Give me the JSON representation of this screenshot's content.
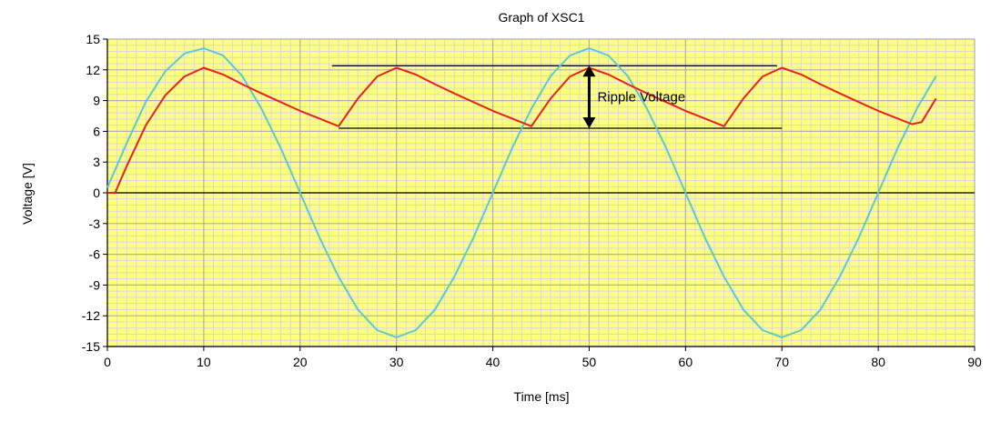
{
  "chart_data": {
    "type": "line",
    "title": "Graph of XSC1",
    "xlabel": "Time [ms]",
    "ylabel": "Voltage [V]",
    "xlim": [
      0,
      90
    ],
    "ylim": [
      -15,
      15
    ],
    "x_ticks": [
      0,
      10,
      20,
      30,
      40,
      50,
      60,
      70,
      80,
      90
    ],
    "y_ticks": [
      15,
      12,
      9,
      6,
      3,
      0,
      -3,
      -6,
      -9,
      -12,
      -15
    ],
    "grid": true,
    "background_color": "#ffff80",
    "grid_minor_color": "#d8d8d8",
    "grid_major_color": "#b0b0b0",
    "series": [
      {
        "color": "#5bc8d8",
        "points": [
          [
            0,
            0.5
          ],
          [
            2,
            4.85
          ],
          [
            4,
            8.9
          ],
          [
            6,
            11.85
          ],
          [
            8,
            13.6
          ],
          [
            10,
            14.1
          ],
          [
            12,
            13.4
          ],
          [
            14,
            11.4
          ],
          [
            16,
            8.2
          ],
          [
            18,
            4.35
          ],
          [
            20,
            0
          ],
          [
            22,
            -4.35
          ],
          [
            24,
            -8.2
          ],
          [
            26,
            -11.4
          ],
          [
            28,
            -13.4
          ],
          [
            30,
            -14.1
          ],
          [
            32,
            -13.4
          ],
          [
            34,
            -11.4
          ],
          [
            36,
            -8.2
          ],
          [
            38,
            -4.35
          ],
          [
            40,
            0
          ],
          [
            42,
            4.35
          ],
          [
            44,
            8.2
          ],
          [
            46,
            11.4
          ],
          [
            48,
            13.4
          ],
          [
            50,
            14.1
          ],
          [
            52,
            13.4
          ],
          [
            54,
            11.4
          ],
          [
            56,
            8.2
          ],
          [
            58,
            4.35
          ],
          [
            60,
            0
          ],
          [
            62,
            -4.35
          ],
          [
            64,
            -8.2
          ],
          [
            66,
            -11.4
          ],
          [
            68,
            -13.4
          ],
          [
            70,
            -14.1
          ],
          [
            72,
            -13.4
          ],
          [
            74,
            -11.4
          ],
          [
            76,
            -8.2
          ],
          [
            78,
            -4.35
          ],
          [
            80,
            0
          ],
          [
            82,
            4.35
          ],
          [
            84,
            8.2
          ],
          [
            86,
            11.4
          ]
        ]
      },
      {
        "color": "#e82020",
        "points": [
          [
            0,
            0
          ],
          [
            0.8,
            0
          ],
          [
            2,
            2.6
          ],
          [
            4,
            6.6
          ],
          [
            6,
            9.5
          ],
          [
            8,
            11.35
          ],
          [
            10,
            12.2
          ],
          [
            12,
            11.55
          ],
          [
            14,
            10.6
          ],
          [
            16,
            9.7
          ],
          [
            18,
            8.85
          ],
          [
            20,
            8.0
          ],
          [
            22,
            7.25
          ],
          [
            24,
            6.5
          ],
          [
            26,
            9.2
          ],
          [
            28,
            11.35
          ],
          [
            30,
            12.2
          ],
          [
            32,
            11.55
          ],
          [
            34,
            10.6
          ],
          [
            36,
            9.7
          ],
          [
            38,
            8.85
          ],
          [
            40,
            8.0
          ],
          [
            42,
            7.25
          ],
          [
            44,
            6.5
          ],
          [
            46,
            9.2
          ],
          [
            48,
            11.35
          ],
          [
            50,
            12.2
          ],
          [
            52,
            11.55
          ],
          [
            54,
            10.6
          ],
          [
            56,
            9.7
          ],
          [
            58,
            8.85
          ],
          [
            60,
            8.0
          ],
          [
            62,
            7.25
          ],
          [
            64,
            6.5
          ],
          [
            66,
            9.2
          ],
          [
            68,
            11.35
          ],
          [
            70,
            12.2
          ],
          [
            72,
            11.55
          ],
          [
            74,
            10.6
          ],
          [
            76,
            9.7
          ],
          [
            78,
            8.85
          ],
          [
            80,
            8.0
          ],
          [
            82,
            7.25
          ],
          [
            83.5,
            6.7
          ],
          [
            84.5,
            6.9
          ],
          [
            86,
            9.2
          ]
        ]
      }
    ],
    "reference_lines": [
      {
        "y": 0,
        "x_range": [
          0,
          90
        ],
        "color": "#000000"
      },
      {
        "y": 12.4,
        "x_range": [
          23.3,
          69.5
        ],
        "color": "#000000"
      },
      {
        "y": 6.3,
        "x_range": [
          24,
          70
        ],
        "color": "#000000"
      }
    ],
    "annotations": [
      {
        "text": "Ripple Voltage",
        "arrow_x": 50,
        "arrow_y_from": 6.3,
        "arrow_y_to": 12.4
      }
    ]
  }
}
